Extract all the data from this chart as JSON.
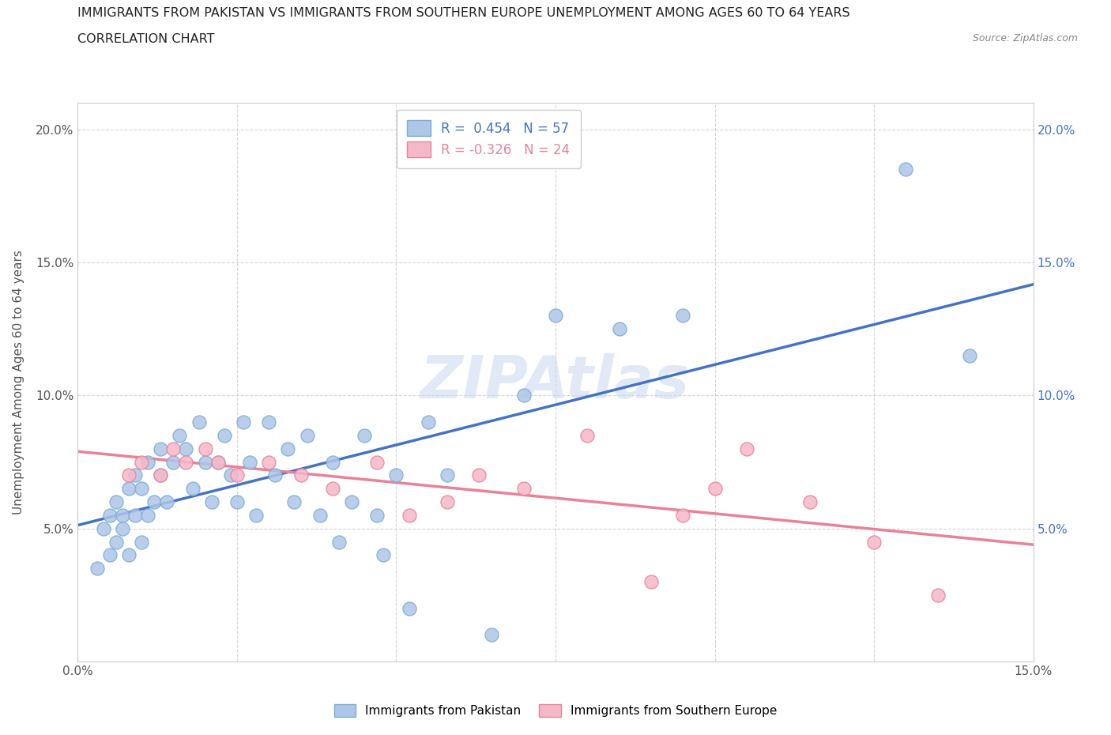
{
  "title_line1": "IMMIGRANTS FROM PAKISTAN VS IMMIGRANTS FROM SOUTHERN EUROPE UNEMPLOYMENT AMONG AGES 60 TO 64 YEARS",
  "title_line2": "CORRELATION CHART",
  "source_text": "Source: ZipAtlas.com",
  "ylabel": "Unemployment Among Ages 60 to 64 years",
  "xlim": [
    0.0,
    0.15
  ],
  "ylim": [
    0.0,
    0.21
  ],
  "pakistan_R": 0.454,
  "pakistan_N": 57,
  "southern_europe_R": -0.326,
  "southern_europe_N": 24,
  "pakistan_color": "#aec6e8",
  "pakistan_edge_color": "#7aadd4",
  "southern_europe_color": "#f5b8c8",
  "southern_europe_edge_color": "#e8829a",
  "trend_pakistan_color": "#4472c4",
  "trend_southern_color": "#e8829a",
  "pakistan_x": [
    0.003,
    0.004,
    0.005,
    0.005,
    0.006,
    0.006,
    0.007,
    0.007,
    0.008,
    0.008,
    0.009,
    0.009,
    0.01,
    0.01,
    0.011,
    0.011,
    0.012,
    0.013,
    0.013,
    0.014,
    0.015,
    0.016,
    0.017,
    0.018,
    0.019,
    0.02,
    0.021,
    0.022,
    0.023,
    0.024,
    0.025,
    0.026,
    0.027,
    0.028,
    0.03,
    0.031,
    0.033,
    0.034,
    0.036,
    0.038,
    0.04,
    0.041,
    0.043,
    0.045,
    0.047,
    0.048,
    0.05,
    0.052,
    0.055,
    0.058,
    0.065,
    0.07,
    0.075,
    0.085,
    0.095,
    0.13,
    0.14
  ],
  "pakistan_y": [
    0.035,
    0.05,
    0.04,
    0.055,
    0.045,
    0.06,
    0.05,
    0.055,
    0.04,
    0.065,
    0.055,
    0.07,
    0.045,
    0.065,
    0.055,
    0.075,
    0.06,
    0.07,
    0.08,
    0.06,
    0.075,
    0.085,
    0.08,
    0.065,
    0.09,
    0.075,
    0.06,
    0.075,
    0.085,
    0.07,
    0.06,
    0.09,
    0.075,
    0.055,
    0.09,
    0.07,
    0.08,
    0.06,
    0.085,
    0.055,
    0.075,
    0.045,
    0.06,
    0.085,
    0.055,
    0.04,
    0.07,
    0.02,
    0.09,
    0.07,
    0.01,
    0.1,
    0.13,
    0.125,
    0.13,
    0.185,
    0.115
  ],
  "southern_x": [
    0.008,
    0.01,
    0.013,
    0.015,
    0.017,
    0.02,
    0.022,
    0.025,
    0.03,
    0.035,
    0.04,
    0.047,
    0.052,
    0.058,
    0.063,
    0.07,
    0.08,
    0.09,
    0.095,
    0.1,
    0.105,
    0.115,
    0.125,
    0.135
  ],
  "southern_y": [
    0.07,
    0.075,
    0.07,
    0.08,
    0.075,
    0.08,
    0.075,
    0.07,
    0.075,
    0.07,
    0.065,
    0.075,
    0.055,
    0.06,
    0.07,
    0.065,
    0.085,
    0.03,
    0.055,
    0.065,
    0.08,
    0.06,
    0.045,
    0.025
  ]
}
